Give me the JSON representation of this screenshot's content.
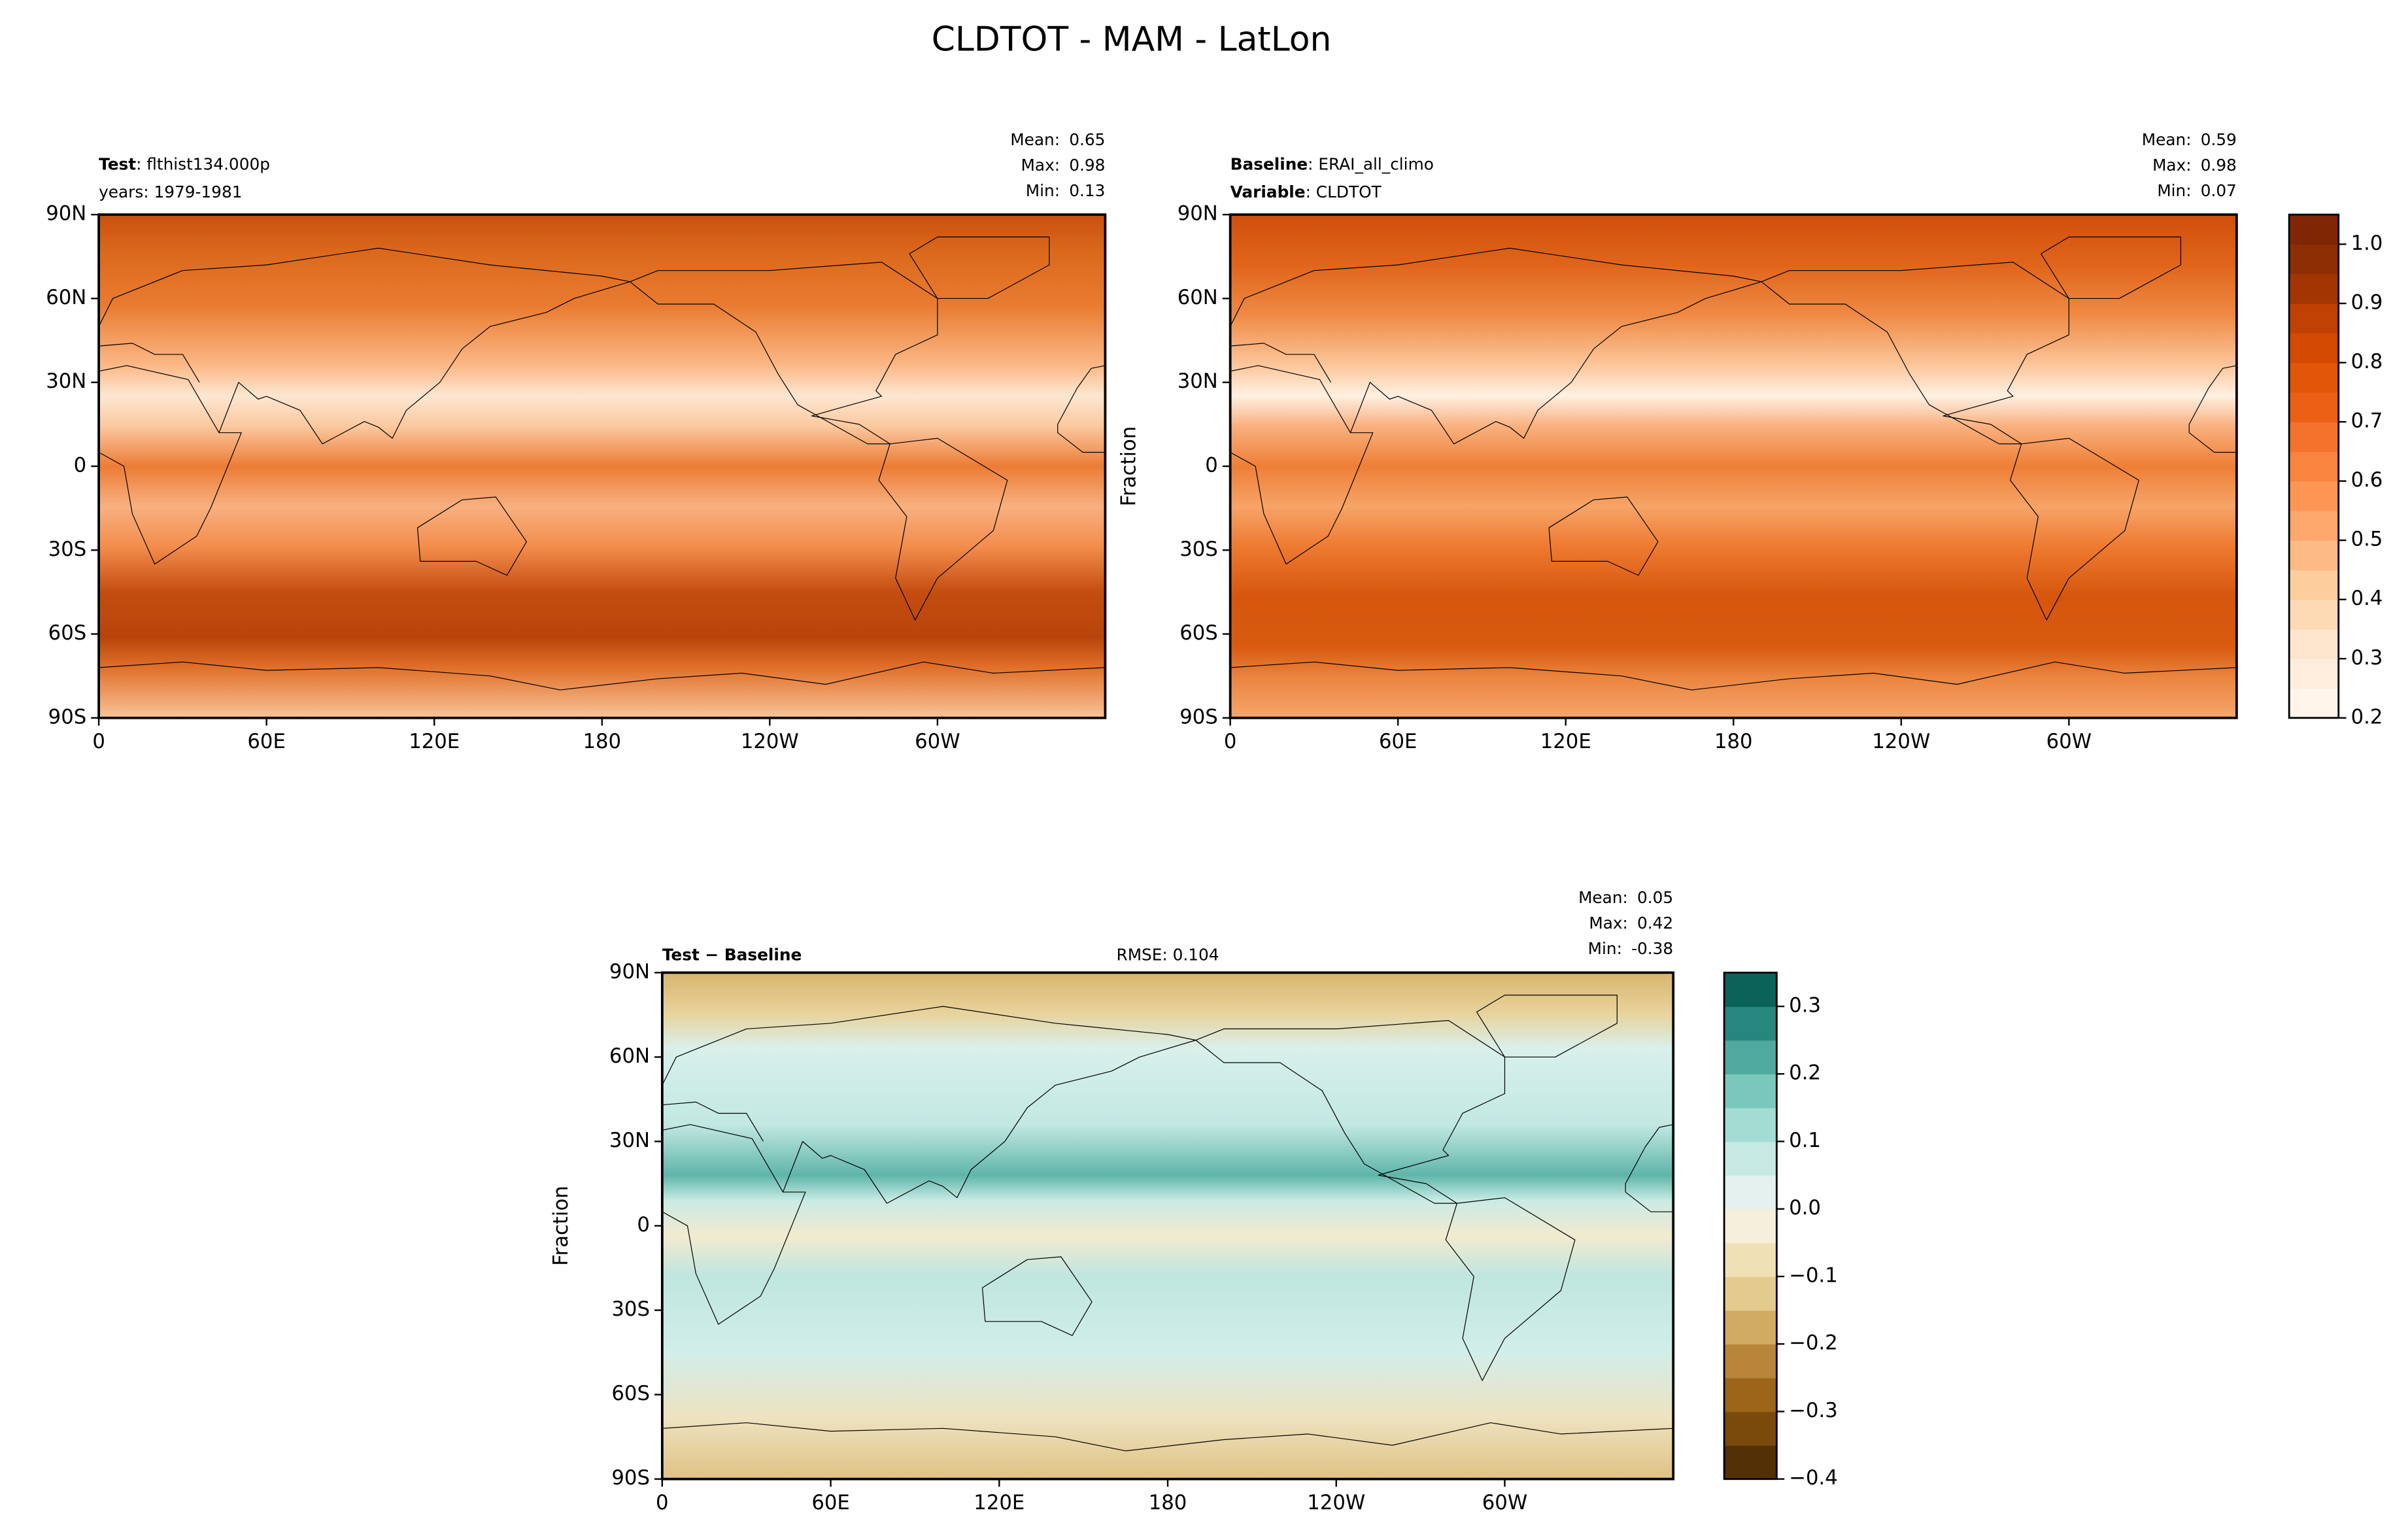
{
  "title": "CLDTOT - MAM - LatLon",
  "panels": [
    {
      "left_lines": [
        {
          "key": "Test",
          "text": ": flthist134.000p"
        },
        {
          "text": "years: 1979-1981"
        }
      ],
      "stats": [
        {
          "label": "Mean:",
          "value": 0.65
        },
        {
          "label": "Max:",
          "value": 0.98
        },
        {
          "label": "Min:",
          "value": 0.13
        }
      ],
      "xlim": [
        0,
        360
      ],
      "ylim": [
        -90,
        90
      ],
      "xticks": [
        0,
        {
          "value": 60,
          "label": "60E"
        },
        {
          "value": 120,
          "label": "120E"
        },
        180,
        {
          "value": 240,
          "label": "120W"
        },
        {
          "value": 300,
          "label": "60W"
        }
      ],
      "yticks": [
        {
          "value": 90,
          "label": "90N"
        },
        {
          "value": 60,
          "label": "60N"
        },
        {
          "value": 30,
          "label": "30N"
        },
        0,
        {
          "value": -30,
          "label": "30S"
        },
        {
          "value": -60,
          "label": "60S"
        },
        {
          "value": -90,
          "label": "90S"
        }
      ]
    },
    {
      "left_lines": [
        {
          "key": "Baseline",
          "text": ": ERAI_all_climo"
        },
        {
          "key": "Variable",
          "text": ": CLDTOT"
        }
      ],
      "stats": [
        {
          "label": "Mean:",
          "value": 0.59
        },
        {
          "label": "Max:",
          "value": 0.98
        },
        {
          "label": "Min:",
          "value": 0.07
        }
      ],
      "ylabel": "Fraction",
      "xlim": [
        0,
        360
      ],
      "ylim": [
        -90,
        90
      ],
      "xticks": [
        0,
        {
          "value": 60,
          "label": "60E"
        },
        {
          "value": 120,
          "label": "120E"
        },
        180,
        {
          "value": 240,
          "label": "120W"
        },
        {
          "value": 300,
          "label": "60W"
        }
      ],
      "yticks": [
        {
          "value": 90,
          "label": "90N"
        },
        {
          "value": 60,
          "label": "60N"
        },
        {
          "value": 30,
          "label": "30N"
        },
        0,
        {
          "value": -30,
          "label": "30S"
        },
        {
          "value": -60,
          "label": "60S"
        },
        {
          "value": -90,
          "label": "90S"
        }
      ]
    },
    {
      "left_lines": [
        {
          "key": "Test − Baseline"
        }
      ],
      "center_text": "RMSE: 0.104",
      "stats": [
        {
          "label": "Mean:",
          "value": 0.05
        },
        {
          "label": "Max:",
          "value": 0.42
        },
        {
          "label": "Min:",
          "value": -0.38
        }
      ],
      "ylabel": "Fraction",
      "xlim": [
        0,
        360
      ],
      "ylim": [
        -90,
        90
      ],
      "xticks": [
        0,
        {
          "value": 60,
          "label": "60E"
        },
        {
          "value": 120,
          "label": "120E"
        },
        180,
        {
          "value": 240,
          "label": "120W"
        },
        {
          "value": 300,
          "label": "60W"
        }
      ],
      "yticks": [
        {
          "value": 90,
          "label": "90N"
        },
        {
          "value": 60,
          "label": "60N"
        },
        {
          "value": 30,
          "label": "30N"
        },
        0,
        {
          "value": -30,
          "label": "30S"
        },
        {
          "value": -60,
          "label": "60S"
        },
        {
          "value": -90,
          "label": "90S"
        }
      ]
    }
  ],
  "colorbars": [
    {
      "clim": [
        0.2,
        1.05
      ],
      "ticks": [
        0.2,
        0.3,
        0.4,
        0.5,
        0.6,
        0.7,
        0.8,
        0.9,
        {
          "value": 1,
          "label": "1.0"
        }
      ],
      "colors": [
        "#fff5eb",
        "#feeddc",
        "#fee6ce",
        "#fdd9b4",
        "#fdcd9c",
        "#fdba84",
        "#fda76c",
        "#fd9655",
        "#f9843f",
        "#f4722b",
        "#ec6016",
        "#e25609",
        "#d44a03",
        "#c14003",
        "#a33503",
        "#8c2d04",
        "#7f2704"
      ]
    },
    {
      "clim": [
        -0.4,
        0.35
      ],
      "ticks": [
        {
          "value": -0.4,
          "label": "−0.4"
        },
        {
          "value": -0.3,
          "label": "−0.3"
        },
        {
          "value": -0.2,
          "label": "−0.2"
        },
        {
          "value": -0.1,
          "label": "−0.1"
        },
        {
          "value": 0,
          "label": "0.0"
        },
        0.1,
        0.2,
        0.3
      ],
      "colors": [
        "#543005",
        "#7a4a0c",
        "#9c6519",
        "#b9853a",
        "#d2ab63",
        "#e3cb8f",
        "#f0e0b6",
        "#f6efdc",
        "#e4f1ee",
        "#c6e9e3",
        "#a3dcd2",
        "#7ac8bc",
        "#4fa99e",
        "#27867d",
        "#0a6259"
      ]
    }
  ]
}
